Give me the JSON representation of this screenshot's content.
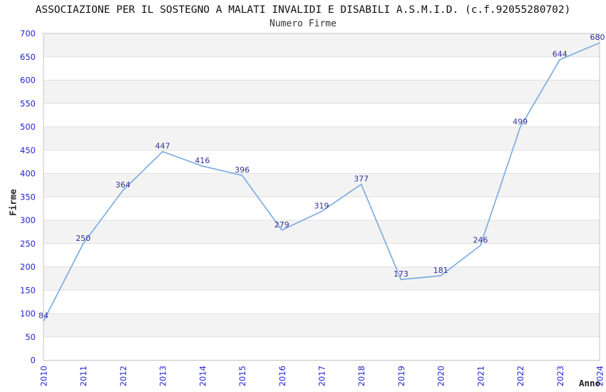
{
  "chart_data": {
    "type": "line",
    "title": "ASSOCIAZIONE PER IL SOSTEGNO A MALATI INVALIDI E DISABILI A.S.M.I.D. (c.f.92055280702)",
    "subtitle": "Numero Firme",
    "xlabel": "Anno",
    "ylabel": "Firme",
    "categories": [
      "2010",
      "2011",
      "2012",
      "2013",
      "2014",
      "2015",
      "2016",
      "2017",
      "2018",
      "2019",
      "2020",
      "2021",
      "2022",
      "2023",
      "2024"
    ],
    "values": [
      84,
      250,
      364,
      447,
      416,
      396,
      279,
      319,
      377,
      173,
      181,
      246,
      499,
      644,
      680
    ],
    "data_labels_shown": true,
    "ylim": [
      0,
      700
    ],
    "ytick_step": 50,
    "grid": "horizontal gridlines every 50 with alternating light-gray bands (gray bands: 50-100, 150-200, 250-300, 350-400, 450-500, 550-600, 650-700)",
    "legend_position": "none",
    "x_tick_rotation": -90,
    "colors": {
      "line": "#7dade0",
      "tick_labels": "#2323d3",
      "data_labels": "#333399",
      "band_fill": "#f3f3f3",
      "gridline": "#e0e0e0",
      "plot_border": "#c6c6c6",
      "title_text": "#111111"
    }
  }
}
